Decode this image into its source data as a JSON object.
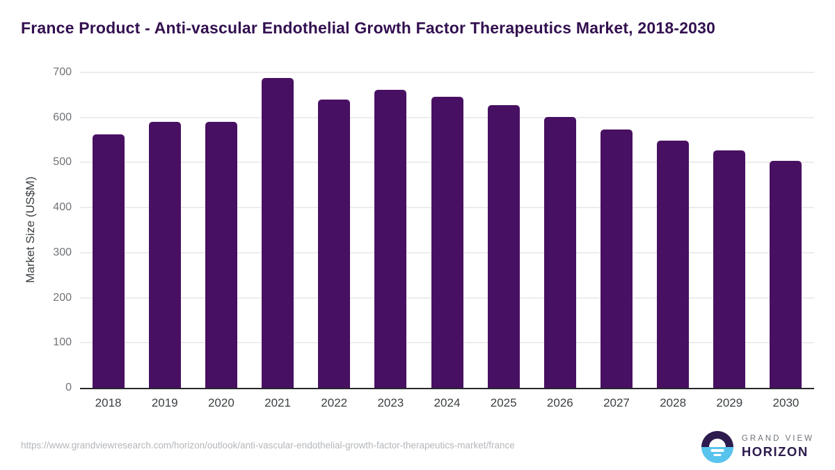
{
  "title": "France Product - Anti-vascular Endothelial Growth Factor Therapeutics Market, 2018-2030",
  "chart_data": {
    "type": "bar",
    "title": "France Product - Anti-vascular Endothelial Growth Factor Therapeutics Market, 2018-2030",
    "categories": [
      "2018",
      "2019",
      "2020",
      "2021",
      "2022",
      "2023",
      "2024",
      "2025",
      "2026",
      "2027",
      "2028",
      "2029",
      "2030"
    ],
    "values": [
      562,
      591,
      591,
      688,
      640,
      661,
      646,
      627,
      601,
      573,
      549,
      527,
      504
    ],
    "xlabel": "",
    "ylabel": "Market Size (US$M)",
    "ylim": [
      0,
      700
    ],
    "yticks": [
      0,
      100,
      200,
      300,
      400,
      500,
      600,
      700
    ],
    "grid": true,
    "legend": false,
    "bar_color": "#481062"
  },
  "footer": {
    "source_url": "https://www.grandviewresearch.com/horizon/outlook/anti-vascular-endothelial-growth-factor-therapeutics-market/france",
    "brand_line1": "GRAND VIEW",
    "brand_line2": "HORIZON",
    "logo_icon": "horizon-sunrise-icon"
  },
  "colors": {
    "bar": "#481062",
    "title_text": "#331050",
    "axis_text": "#3c4043",
    "tick_text": "#6f7276",
    "gridline": "#ececec",
    "axis_line": "#26262b",
    "url_text": "#b3b6ba",
    "logo_top": "#2d1b4e",
    "logo_bottom": "#58c4ee",
    "brand_gray": "#6d7278"
  }
}
